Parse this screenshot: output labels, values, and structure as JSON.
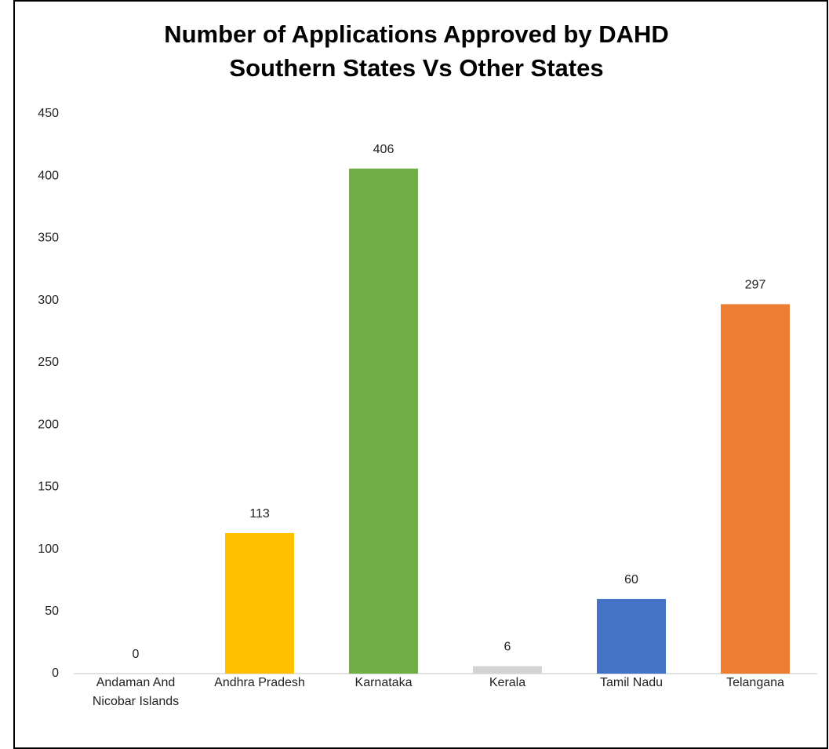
{
  "chart_data": {
    "type": "bar",
    "title": "Number of Applications Approved by DAHD",
    "subtitle": "Southern States Vs Other States",
    "categories": [
      "Andaman And Nicobar Islands",
      "Andhra Pradesh",
      "Karnataka",
      "Kerala",
      "Tamil Nadu",
      "Telangana"
    ],
    "values": [
      0,
      113,
      406,
      6,
      60,
      297
    ],
    "colors": [
      "#5b9bd5",
      "#ffc000",
      "#70ad47",
      "#d3d3d3",
      "#4472c4",
      "#ed7d31"
    ],
    "ylim": [
      0,
      450
    ],
    "yticks": [
      0,
      50,
      100,
      150,
      200,
      250,
      300,
      350,
      400,
      450
    ],
    "grid": false
  }
}
